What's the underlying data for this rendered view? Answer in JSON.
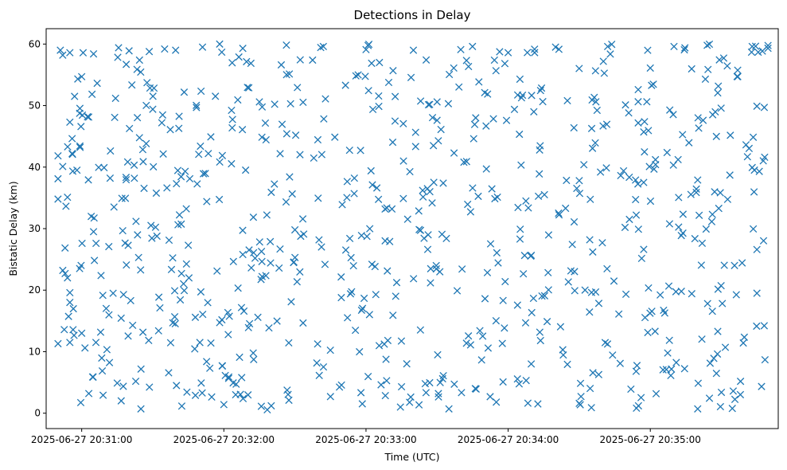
{
  "chart_data": {
    "type": "scatter",
    "title": "Detections in Delay",
    "xlabel": "Time (UTC)",
    "ylabel": "Bistatic Delay (km)",
    "marker": "x",
    "color": "#1f77b4",
    "xlim": [
      "2025-06-27 20:30:45",
      "2025-06-27 20:35:54"
    ],
    "ylim": [
      -2.5,
      62.5
    ],
    "xticks": [
      "2025-06-27 20:31:00",
      "2025-06-27 20:32:00",
      "2025-06-27 20:33:00",
      "2025-06-27 20:34:00",
      "2025-06-27 20:35:00"
    ],
    "yticks": [
      0,
      10,
      20,
      30,
      40,
      50,
      60
    ],
    "grid": false,
    "legend": "none",
    "time_range": [
      "2025-06-27 20:30:50",
      "2025-06-27 20:35:50"
    ],
    "point_count": 800,
    "points": [
      [
        "2025-06-27 20:30:51",
        59.0
      ],
      [
        "2025-06-27 20:30:52",
        58.2
      ],
      [
        "2025-06-27 20:30:55",
        58.6
      ],
      [
        "2025-06-27 20:31:05",
        58.4
      ],
      [
        "2025-06-27 20:31:20",
        58.9
      ],
      [
        "2025-06-27 20:31:35",
        59.2
      ],
      [
        "2025-06-27 20:31:51",
        59.5
      ],
      [
        "2025-06-27 20:32:08",
        59.3
      ],
      [
        "2025-06-27 20:32:42",
        59.6
      ],
      [
        "2025-06-27 20:33:00",
        59.1
      ],
      [
        "2025-06-27 20:33:20",
        59.0
      ],
      [
        "2025-06-27 20:33:40",
        59.1
      ],
      [
        "2025-06-27 20:34:00",
        58.6
      ],
      [
        "2025-06-27 20:34:20",
        59.5
      ],
      [
        "2025-06-27 20:34:42",
        59.6
      ],
      [
        "2025-06-27 20:35:10",
        59.6
      ],
      [
        "2025-06-27 20:35:24",
        59.8
      ],
      [
        "2025-06-27 20:35:43",
        59.6
      ],
      [
        "2025-06-27 20:30:55",
        47.3
      ],
      [
        "2025-06-27 20:30:57",
        51.5
      ],
      [
        "2025-06-27 20:31:00",
        54.7
      ],
      [
        "2025-06-27 20:31:30",
        49.4
      ],
      [
        "2025-06-27 20:32:15",
        50.6
      ],
      [
        "2025-06-27 20:33:30",
        50.6
      ],
      [
        "2025-06-27 20:34:25",
        50.8
      ],
      [
        "2025-06-27 20:35:00",
        56.1
      ],
      [
        "2025-06-27 20:35:45",
        49.9
      ],
      [
        "2025-06-27 20:30:52",
        40.1
      ],
      [
        "2025-06-27 20:30:58",
        39.5
      ],
      [
        "2025-06-27 20:31:12",
        38.2
      ],
      [
        "2025-06-27 20:31:40",
        37.3
      ],
      [
        "2025-06-27 20:32:20",
        35.9
      ],
      [
        "2025-06-27 20:32:55",
        35.7
      ],
      [
        "2025-06-27 20:33:45",
        36.6
      ],
      [
        "2025-06-27 20:34:30",
        37.8
      ],
      [
        "2025-06-27 20:35:20",
        37.9
      ],
      [
        "2025-06-27 20:35:46",
        39.3
      ],
      [
        "2025-06-27 20:30:50",
        38.1
      ],
      [
        "2025-06-27 20:30:50",
        34.8
      ],
      [
        "2025-06-27 20:30:54",
        35.1
      ],
      [
        "2025-06-27 20:31:05",
        29.5
      ],
      [
        "2025-06-27 20:31:45",
        27.3
      ],
      [
        "2025-06-27 20:32:30",
        29.8
      ],
      [
        "2025-06-27 20:33:10",
        27.9
      ],
      [
        "2025-06-27 20:34:05",
        28.3
      ],
      [
        "2025-06-27 20:34:55",
        29.9
      ],
      [
        "2025-06-27 20:35:45",
        26.6
      ],
      [
        "2025-06-27 20:30:50",
        11.3
      ],
      [
        "2025-06-27 20:30:53",
        22.7
      ],
      [
        "2025-06-27 20:30:54",
        22.0
      ],
      [
        "2025-06-27 20:30:55",
        18.0
      ],
      [
        "2025-06-27 20:30:55",
        11.5
      ],
      [
        "2025-06-27 20:31:00",
        13.0
      ],
      [
        "2025-06-27 20:31:03",
        3.2
      ],
      [
        "2025-06-27 20:31:06",
        11.5
      ],
      [
        "2025-06-27 20:31:15",
        4.9
      ],
      [
        "2025-06-27 20:31:25",
        0.7
      ],
      [
        "2025-06-27 20:31:40",
        4.5
      ],
      [
        "2025-06-27 20:31:48",
        2.9
      ],
      [
        "2025-06-27 20:32:00",
        1.4
      ],
      [
        "2025-06-27 20:32:05",
        3.0
      ],
      [
        "2025-06-27 20:32:20",
        1.2
      ],
      [
        "2025-06-27 20:32:45",
        2.7
      ],
      [
        "2025-06-27 20:33:15",
        4.3
      ],
      [
        "2025-06-27 20:33:25",
        4.8
      ],
      [
        "2025-06-27 20:33:35",
        0.7
      ],
      [
        "2025-06-27 20:33:55",
        1.8
      ],
      [
        "2025-06-27 20:34:30",
        1.6
      ],
      [
        "2025-06-27 20:34:55",
        1.2
      ],
      [
        "2025-06-27 20:35:20",
        0.7
      ],
      [
        "2025-06-27 20:35:35",
        3.6
      ],
      [
        "2025-06-27 20:35:45",
        19.5
      ]
    ]
  }
}
